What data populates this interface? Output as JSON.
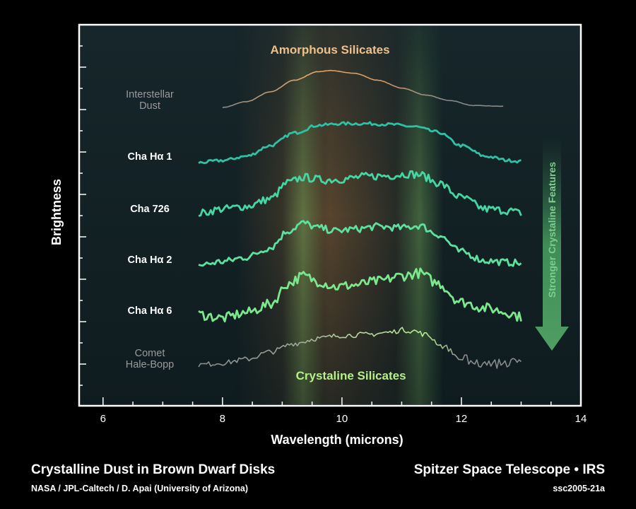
{
  "chart_data": {
    "type": "line",
    "xlabel": "Wavelength (microns)",
    "ylabel": "Brightness",
    "xlim": [
      5.6,
      14.0
    ],
    "xticks": [
      6,
      8,
      10,
      12,
      14
    ],
    "grid": false,
    "bands": [
      {
        "label": "Amorphous Silicates",
        "center": 9.8,
        "width": 3.2,
        "color": "#b8763a",
        "label_color": "#f0c08a"
      },
      {
        "label": "",
        "center": 9.35,
        "width": 0.7,
        "color": "#8fd46a"
      },
      {
        "label": "Crystaline Silicates",
        "center": 11.3,
        "width": 0.8,
        "color": "#8fd46a",
        "label_color": "#b6f08a"
      }
    ],
    "annotation": {
      "text": "Stronger Crystaline Features",
      "color": "#7ecf8c"
    },
    "series": [
      {
        "name": "Interstellar Dust",
        "label_lines": [
          "Interstellar",
          "Dust"
        ],
        "label_color": "#9a9a9a",
        "color": "#8f8f8f",
        "shape": "amorphous",
        "x": [
          8.0,
          8.4,
          8.8,
          9.2,
          9.6,
          9.8,
          10.2,
          10.6,
          11.0,
          11.4,
          11.8,
          12.2,
          12.7
        ],
        "y": [
          0.0,
          0.15,
          0.4,
          0.7,
          0.92,
          0.95,
          0.88,
          0.7,
          0.5,
          0.32,
          0.18,
          0.05,
          0.03
        ]
      },
      {
        "name": "Cha Hα 1",
        "label_lines": [
          "Cha Hα 1"
        ],
        "label_color": "#ffffff",
        "color": "#2ec1a6",
        "shape": "smooth",
        "x": [
          7.6,
          8.0,
          8.4,
          8.8,
          9.2,
          9.6,
          10.0,
          10.4,
          10.8,
          11.2,
          11.6,
          12.0,
          12.4,
          12.8,
          13.0
        ],
        "y": [
          0.0,
          0.05,
          0.15,
          0.4,
          0.7,
          0.88,
          0.92,
          0.92,
          0.9,
          0.85,
          0.72,
          0.4,
          0.15,
          0.05,
          0.03
        ]
      },
      {
        "name": "Cha 726",
        "label_lines": [
          "Cha 726"
        ],
        "label_color": "#ffffff",
        "color": "#46d6a4",
        "shape": "crystal1",
        "x": [
          7.6,
          8.0,
          8.4,
          8.8,
          9.1,
          9.35,
          9.7,
          10.0,
          10.4,
          10.8,
          11.1,
          11.3,
          11.6,
          12.0,
          12.4,
          12.8,
          13.0
        ],
        "y": [
          0.02,
          0.12,
          0.18,
          0.35,
          0.72,
          0.84,
          0.78,
          0.8,
          0.86,
          0.88,
          0.92,
          0.9,
          0.72,
          0.38,
          0.12,
          0.08,
          0.02
        ]
      },
      {
        "name": "Cha Hα 2",
        "label_lines": [
          "Cha Hα 2"
        ],
        "label_color": "#ffffff",
        "color": "#5ce29e",
        "shape": "crystal2",
        "x": [
          7.6,
          8.0,
          8.4,
          8.8,
          9.1,
          9.35,
          9.6,
          9.9,
          10.2,
          10.6,
          11.0,
          11.3,
          11.6,
          12.0,
          12.4,
          12.8,
          13.0
        ],
        "y": [
          0.0,
          0.08,
          0.18,
          0.4,
          0.78,
          0.96,
          0.85,
          0.78,
          0.82,
          0.88,
          0.85,
          0.9,
          0.7,
          0.3,
          0.1,
          0.06,
          0.04
        ]
      },
      {
        "name": "Cha Hα 6",
        "label_lines": [
          "Cha Hα 6"
        ],
        "label_color": "#ffffff",
        "color": "#7ce88e",
        "shape": "crystal3",
        "x": [
          7.6,
          8.0,
          8.4,
          8.8,
          9.1,
          9.35,
          9.6,
          9.9,
          10.2,
          10.6,
          11.0,
          11.3,
          11.6,
          12.0,
          12.4,
          12.8,
          13.0
        ],
        "y": [
          0.08,
          0.0,
          0.12,
          0.3,
          0.75,
          0.92,
          0.8,
          0.68,
          0.72,
          0.8,
          0.92,
          0.98,
          0.76,
          0.35,
          0.22,
          0.12,
          0.02
        ]
      },
      {
        "name": "Comet Hale-Bopp",
        "label_lines": [
          "Comet",
          "Hale-Bopp"
        ],
        "label_color": "#9a9a9a",
        "color": "#8f8f8f",
        "shape": "comet",
        "x": [
          7.6,
          8.0,
          8.4,
          8.8,
          9.2,
          9.6,
          10.0,
          10.4,
          10.8,
          11.0,
          11.2,
          11.4,
          11.7,
          12.0,
          12.4,
          12.8,
          13.0
        ],
        "y": [
          0.0,
          0.05,
          0.15,
          0.35,
          0.58,
          0.72,
          0.8,
          0.82,
          0.88,
          0.95,
          0.92,
          0.82,
          0.5,
          0.15,
          0.02,
          0.05,
          0.06
        ]
      }
    ]
  },
  "footer": {
    "title": "Crystalline Dust in Brown Dwarf Disks",
    "credit": "NASA / JPL-Caltech / D. Apai (University of Arizona)",
    "mission": "Spitzer Space Telescope • IRS",
    "image_id": "ssc2005-21a"
  }
}
